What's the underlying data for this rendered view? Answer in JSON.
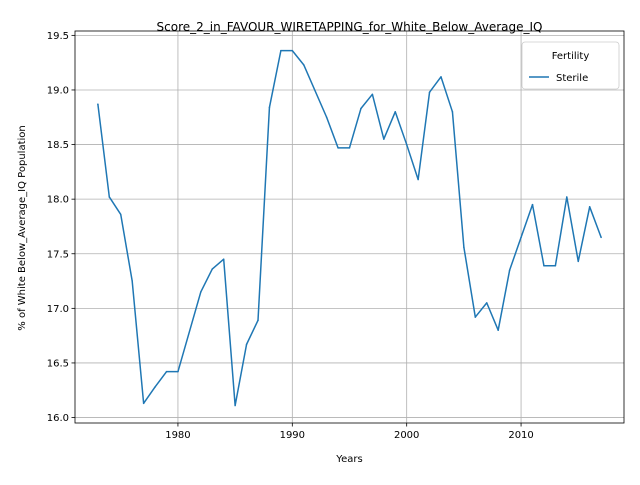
{
  "chart_data": {
    "type": "line",
    "title": "Score_2_in_FAVOUR_WIRETAPPING_for_White_Below_Average_IQ",
    "xlabel": "Years",
    "ylabel": "% of White Below_Average_IQ Population",
    "xlim": [
      1971,
      2019
    ],
    "ylim": [
      15.95,
      19.54
    ],
    "xticks": [
      1980,
      1990,
      2000,
      2010
    ],
    "yticks": [
      "16.0",
      "16.5",
      "17.0",
      "17.5",
      "18.0",
      "18.5",
      "19.0",
      "19.5"
    ],
    "grid": true,
    "legend": {
      "title": "Fertility",
      "position": "top-right"
    },
    "series": [
      {
        "name": "Sterile",
        "color": "#1f77b4",
        "x": [
          1973,
          1974,
          1975,
          1976,
          1977,
          1978,
          1979,
          1980,
          1982,
          1983,
          1984,
          1985,
          1986,
          1987,
          1988,
          1989,
          1990,
          1991,
          1993,
          1994,
          1995,
          1996,
          1997,
          1998,
          1999,
          2000,
          2001,
          2002,
          2003,
          2004,
          2005,
          2006,
          2007,
          2008,
          2009,
          2010,
          2011,
          2012,
          2013,
          2014,
          2015,
          2016,
          2017
        ],
        "y": [
          18.87,
          18.02,
          17.86,
          17.25,
          16.13,
          16.28,
          16.42,
          16.42,
          17.15,
          17.36,
          17.45,
          16.11,
          16.67,
          16.89,
          18.84,
          19.36,
          19.36,
          19.23,
          18.75,
          18.47,
          18.47,
          18.83,
          18.96,
          18.55,
          18.8,
          18.5,
          18.18,
          18.98,
          19.12,
          18.8,
          17.56,
          16.92,
          17.05,
          16.8,
          17.35,
          17.65,
          17.95,
          17.39,
          17.39,
          18.02,
          17.43,
          17.93,
          17.65
        ]
      }
    ]
  }
}
